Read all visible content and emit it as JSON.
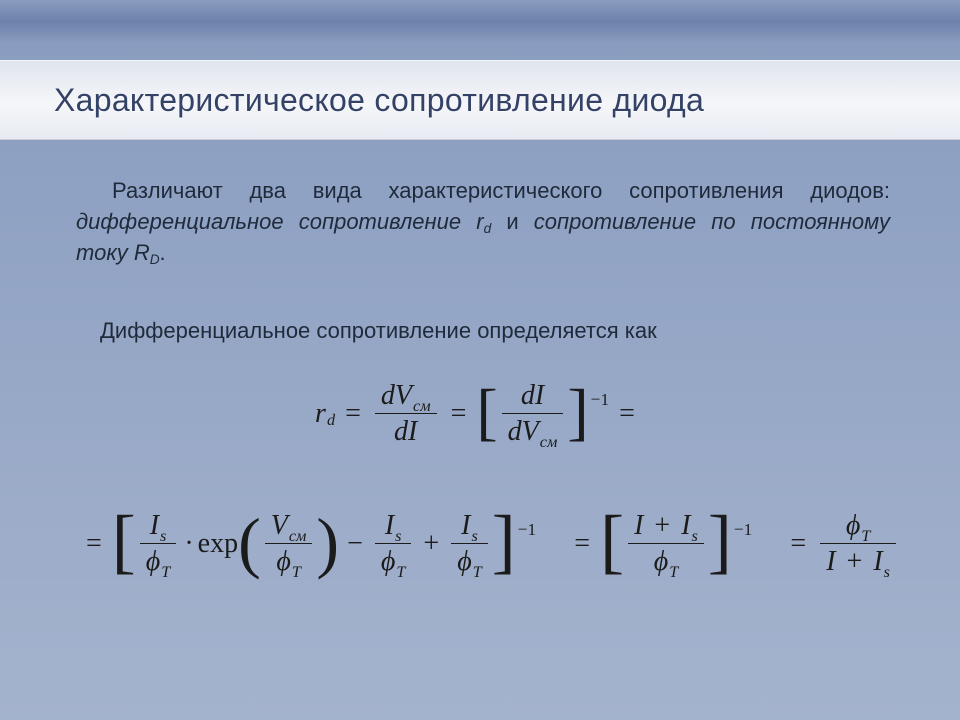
{
  "colors": {
    "title_text": "#334266",
    "body_text": "#1f2a3a",
    "formula_text": "#1b1b1b",
    "title_band_top": "#dfe5ee",
    "title_band_mid": "#f5f6f9",
    "title_band_bot": "#e7ebf2",
    "bg_top": "#8a9dc0",
    "bg_mid": "#6d82ab",
    "bg_bot": "#a4b3cd"
  },
  "typography": {
    "title_fontsize": 32,
    "body_fontsize": 22,
    "formula_fontsize": 28,
    "body_font": "Arial",
    "formula_font": "Times New Roman"
  },
  "title": "Характеристическое сопротивление диода",
  "para": {
    "lead": "Различают два вида характеристического сопротивления диодов: ",
    "em1": "дифференциальное сопротивление r",
    "em1_sub": "d",
    "mid": " и ",
    "em2": "сопротивление по постоянному току R",
    "em2_sub": "D",
    "end": "."
  },
  "subhead": "Дифференциальное сопротивление определяется как",
  "sym": {
    "r": "r",
    "d_sub": "d",
    "dV": "dV",
    "cm_sub": "см",
    "dI": "dI",
    "I": "I",
    "s_sub": "s",
    "V": "V",
    "phi": "ϕ",
    "T_sub": "T",
    "exp": "exp",
    "eq": "=",
    "minus": "−",
    "plus": "+",
    "dot": "·",
    "inv": "−1",
    "lbracket": "[",
    "rbracket": "]",
    "lparen": "(",
    "rparen": ")"
  }
}
